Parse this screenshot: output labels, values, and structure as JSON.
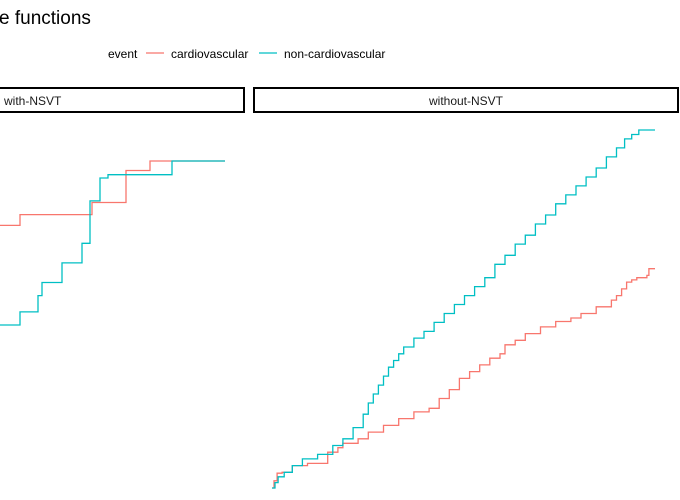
{
  "colors": {
    "cardiovascular": "#F8766D",
    "non_cardiovascular": "#00BFC4",
    "strip_border": "#000000",
    "background": "#ffffff"
  },
  "chart_data": {
    "type": "line",
    "title": "e functions",
    "legend": {
      "title": "event",
      "position": "top",
      "entries": [
        "cardiovascular",
        "non-cardiovascular"
      ]
    },
    "grid": false,
    "panels": [
      {
        "strip": "with-NSVT",
        "series": [
          {
            "name": "cardiovascular",
            "color_key": "cardiovascular",
            "points": [
              [
                -50,
                0.305
              ],
              [
                0,
                0.305
              ],
              [
                20,
                0.305
              ],
              [
                20,
                0.338
              ],
              [
                40,
                0.338
              ],
              [
                40,
                0.338
              ],
              [
                92,
                0.338
              ],
              [
                92,
                0.375
              ],
              [
                126,
                0.375
              ],
              [
                126,
                0.473
              ],
              [
                150,
                0.473
              ],
              [
                150,
                0.502
              ],
              [
                174,
                0.502
              ],
              [
                174,
                0.502
              ],
              [
                225,
                0.502
              ]
            ]
          },
          {
            "name": "non-cardiovascular",
            "color_key": "non_cardiovascular",
            "points": [
              [
                -50,
                0.0
              ],
              [
                0,
                0.0
              ],
              [
                20,
                0.0
              ],
              [
                20,
                0.04
              ],
              [
                38,
                0.04
              ],
              [
                38,
                0.09
              ],
              [
                42,
                0.09
              ],
              [
                42,
                0.13
              ],
              [
                62,
                0.13
              ],
              [
                62,
                0.19
              ],
              [
                82,
                0.19
              ],
              [
                82,
                0.25
              ],
              [
                90,
                0.25
              ],
              [
                90,
                0.38
              ],
              [
                100,
                0.38
              ],
              [
                100,
                0.45
              ],
              [
                108,
                0.45
              ],
              [
                108,
                0.46
              ],
              [
                132,
                0.46
              ],
              [
                132,
                0.46
              ],
              [
                152,
                0.46
              ],
              [
                152,
                0.46
              ],
              [
                172,
                0.46
              ],
              [
                172,
                0.502
              ],
              [
                225,
                0.502
              ]
            ]
          }
        ]
      },
      {
        "strip": "without-NSVT",
        "series": [
          {
            "name": "cardiovascular",
            "color_key": "cardiovascular",
            "points": [
              [
                0,
                0.0
              ],
              [
                2,
                0.0
              ],
              [
                2,
                0.016
              ],
              [
                5,
                0.016
              ],
              [
                5,
                0.033
              ],
              [
                10,
                0.033
              ],
              [
                10,
                0.035
              ],
              [
                20,
                0.035
              ],
              [
                20,
                0.05
              ],
              [
                35,
                0.05
              ],
              [
                35,
                0.055
              ],
              [
                55,
                0.055
              ],
              [
                55,
                0.08
              ],
              [
                65,
                0.08
              ],
              [
                65,
                0.09
              ],
              [
                70,
                0.09
              ],
              [
                70,
                0.1
              ],
              [
                85,
                0.1
              ],
              [
                85,
                0.11
              ],
              [
                95,
                0.11
              ],
              [
                95,
                0.125
              ],
              [
                110,
                0.125
              ],
              [
                110,
                0.14
              ],
              [
                125,
                0.14
              ],
              [
                125,
                0.155
              ],
              [
                140,
                0.155
              ],
              [
                140,
                0.17
              ],
              [
                155,
                0.17
              ],
              [
                155,
                0.178
              ],
              [
                165,
                0.178
              ],
              [
                165,
                0.2
              ],
              [
                175,
                0.2
              ],
              [
                175,
                0.22
              ],
              [
                185,
                0.22
              ],
              [
                185,
                0.245
              ],
              [
                195,
                0.245
              ],
              [
                195,
                0.26
              ],
              [
                205,
                0.26
              ],
              [
                205,
                0.275
              ],
              [
                215,
                0.275
              ],
              [
                215,
                0.29
              ],
              [
                225,
                0.29
              ],
              [
                225,
                0.3
              ],
              [
                230,
                0.3
              ],
              [
                230,
                0.32
              ],
              [
                240,
                0.32
              ],
              [
                240,
                0.33
              ],
              [
                250,
                0.33
              ],
              [
                250,
                0.345
              ],
              [
                265,
                0.345
              ],
              [
                265,
                0.36
              ],
              [
                280,
                0.36
              ],
              [
                280,
                0.372
              ],
              [
                295,
                0.372
              ],
              [
                295,
                0.38
              ],
              [
                305,
                0.38
              ],
              [
                305,
                0.39
              ],
              [
                320,
                0.39
              ],
              [
                320,
                0.405
              ],
              [
                335,
                0.405
              ],
              [
                335,
                0.42
              ],
              [
                340,
                0.42
              ],
              [
                340,
                0.43
              ],
              [
                345,
                0.43
              ],
              [
                345,
                0.445
              ],
              [
                350,
                0.445
              ],
              [
                350,
                0.46
              ],
              [
                355,
                0.46
              ],
              [
                355,
                0.465
              ],
              [
                360,
                0.465
              ],
              [
                360,
                0.47
              ],
              [
                370,
                0.47
              ],
              [
                370,
                0.475
              ],
              [
                372,
                0.475
              ],
              [
                372,
                0.49
              ],
              [
                378,
                0.49
              ],
              [
                378,
                0.49
              ]
            ]
          },
          {
            "name": "non-cardiovascular",
            "color_key": "non_cardiovascular",
            "points": [
              [
                0,
                0.0
              ],
              [
                3,
                0.0
              ],
              [
                3,
                0.012
              ],
              [
                6,
                0.012
              ],
              [
                6,
                0.025
              ],
              [
                12,
                0.025
              ],
              [
                12,
                0.035
              ],
              [
                20,
                0.035
              ],
              [
                20,
                0.05
              ],
              [
                30,
                0.05
              ],
              [
                30,
                0.065
              ],
              [
                45,
                0.065
              ],
              [
                45,
                0.075
              ],
              [
                60,
                0.075
              ],
              [
                60,
                0.095
              ],
              [
                70,
                0.095
              ],
              [
                70,
                0.11
              ],
              [
                80,
                0.11
              ],
              [
                80,
                0.135
              ],
              [
                90,
                0.135
              ],
              [
                90,
                0.165
              ],
              [
                95,
                0.165
              ],
              [
                95,
                0.19
              ],
              [
                100,
                0.19
              ],
              [
                100,
                0.21
              ],
              [
                105,
                0.21
              ],
              [
                105,
                0.23
              ],
              [
                110,
                0.23
              ],
              [
                110,
                0.25
              ],
              [
                115,
                0.25
              ],
              [
                115,
                0.27
              ],
              [
                120,
                0.27
              ],
              [
                120,
                0.285
              ],
              [
                125,
                0.285
              ],
              [
                125,
                0.3
              ],
              [
                130,
                0.3
              ],
              [
                130,
                0.315
              ],
              [
                140,
                0.315
              ],
              [
                140,
                0.335
              ],
              [
                150,
                0.335
              ],
              [
                150,
                0.35
              ],
              [
                160,
                0.35
              ],
              [
                160,
                0.37
              ],
              [
                170,
                0.37
              ],
              [
                170,
                0.39
              ],
              [
                180,
                0.39
              ],
              [
                180,
                0.41
              ],
              [
                190,
                0.41
              ],
              [
                190,
                0.43
              ],
              [
                200,
                0.43
              ],
              [
                200,
                0.45
              ],
              [
                210,
                0.45
              ],
              [
                210,
                0.47
              ],
              [
                220,
                0.47
              ],
              [
                220,
                0.5
              ],
              [
                230,
                0.5
              ],
              [
                230,
                0.52
              ],
              [
                240,
                0.52
              ],
              [
                240,
                0.545
              ],
              [
                250,
                0.545
              ],
              [
                250,
                0.565
              ],
              [
                260,
                0.565
              ],
              [
                260,
                0.59
              ],
              [
                270,
                0.59
              ],
              [
                270,
                0.61
              ],
              [
                280,
                0.61
              ],
              [
                280,
                0.635
              ],
              [
                290,
                0.635
              ],
              [
                290,
                0.655
              ],
              [
                300,
                0.655
              ],
              [
                300,
                0.675
              ],
              [
                310,
                0.675
              ],
              [
                310,
                0.695
              ],
              [
                320,
                0.695
              ],
              [
                320,
                0.715
              ],
              [
                330,
                0.715
              ],
              [
                330,
                0.74
              ],
              [
                340,
                0.74
              ],
              [
                340,
                0.76
              ],
              [
                348,
                0.76
              ],
              [
                348,
                0.78
              ],
              [
                355,
                0.78
              ],
              [
                355,
                0.79
              ],
              [
                362,
                0.79
              ],
              [
                362,
                0.8
              ],
              [
                370,
                0.8
              ],
              [
                370,
                0.8
              ],
              [
                378,
                0.8
              ]
            ]
          }
        ]
      }
    ]
  }
}
